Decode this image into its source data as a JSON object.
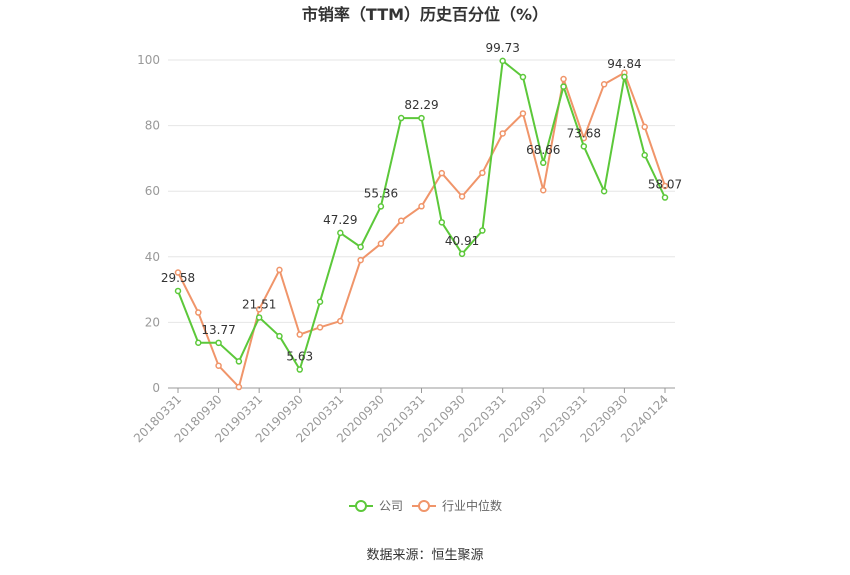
{
  "chart_data": {
    "type": "line",
    "title": "市销率（TTM）历史百分位（%）",
    "xlabel": "",
    "ylabel": "",
    "ylim": [
      0,
      100
    ],
    "yticks": [
      0,
      20,
      40,
      60,
      80,
      100
    ],
    "x": [
      "20180331",
      "20180630",
      "20180930",
      "20181231",
      "20190331",
      "20190630",
      "20190930",
      "20191231",
      "20200331",
      "20200630",
      "20200930",
      "20201231",
      "20210331",
      "20210630",
      "20210930",
      "20211231",
      "20220331",
      "20220630",
      "20220930",
      "20221231",
      "20230331",
      "20230630",
      "20230930",
      "20231231",
      "20240124"
    ],
    "xtick_labels": [
      "20180331",
      "20180930",
      "20190331",
      "20190930",
      "20200331",
      "20200930",
      "20210331",
      "20210930",
      "20220331",
      "20220930",
      "20230331",
      "20230930",
      "20240124"
    ],
    "series": [
      {
        "name": "公司",
        "color": "#5cc83a",
        "values": [
          29.58,
          13.8,
          13.77,
          8.1,
          21.51,
          15.8,
          5.63,
          26.3,
          47.29,
          43.0,
          55.36,
          82.3,
          82.29,
          50.5,
          40.91,
          48.0,
          99.73,
          94.8,
          68.66,
          91.9,
          73.68,
          60.0,
          94.84,
          71.0,
          58.07
        ],
        "labels": {
          "0": "29.58",
          "2": "13.77",
          "4": "21.51",
          "6": "5.63",
          "8": "47.29",
          "10": "55.36",
          "12": "82.29",
          "14": "40.91",
          "16": "99.73",
          "18": "68.66",
          "20": "73.68",
          "22": "94.84",
          "24": "58.07"
        }
      },
      {
        "name": "行业中位数",
        "color": "#f0956a",
        "values": [
          35.2,
          23.0,
          6.8,
          0.3,
          24.0,
          36.0,
          16.3,
          18.5,
          20.4,
          39.0,
          44.0,
          51.0,
          55.4,
          65.5,
          58.4,
          65.6,
          77.6,
          83.7,
          60.3,
          94.2,
          76.2,
          92.6,
          96.1,
          79.6,
          61.6
        ]
      }
    ],
    "legend": {
      "position": "bottom"
    },
    "grid": true
  },
  "footer": {
    "source": "数据来源：恒生聚源"
  }
}
